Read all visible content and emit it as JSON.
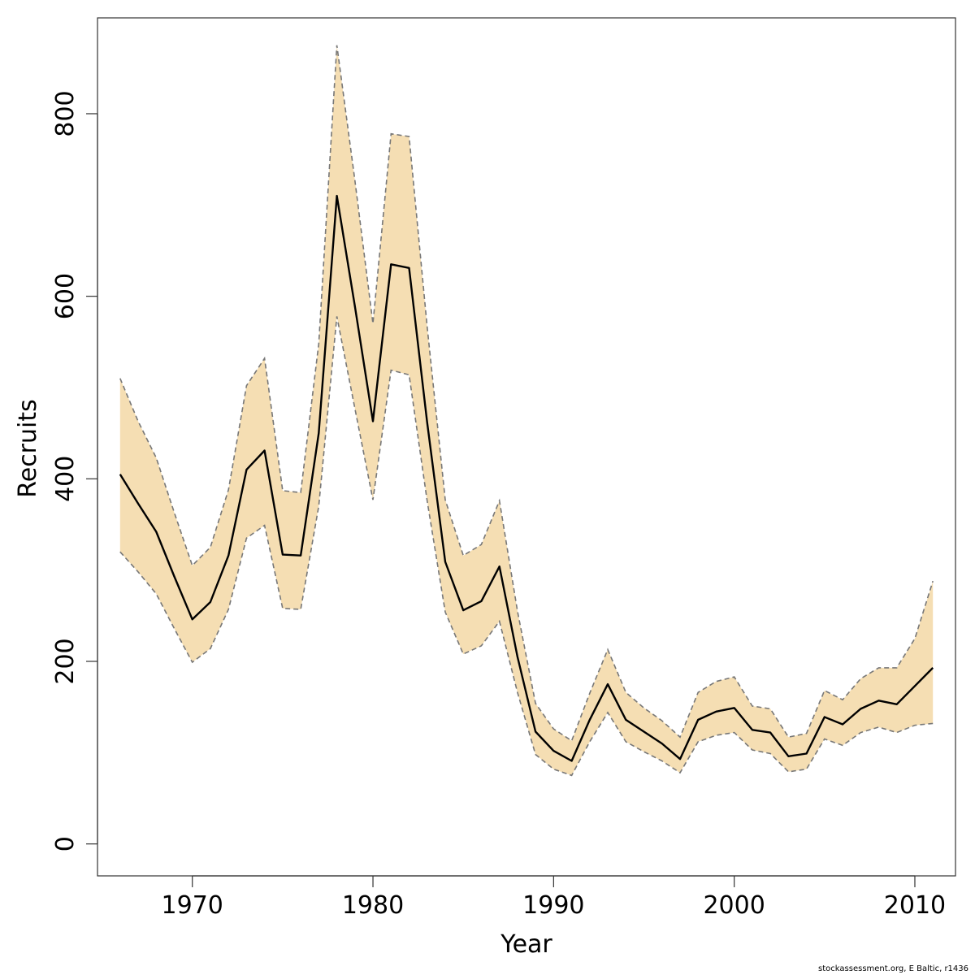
{
  "chart_data": {
    "type": "area",
    "xlabel": "Year",
    "ylabel": "Recruits",
    "xlim": [
      1964.75,
      2012.25
    ],
    "ylim": [
      -35,
      905
    ],
    "x_ticks": [
      1970,
      1980,
      1990,
      2000,
      2010
    ],
    "y_ticks": [
      0,
      200,
      400,
      600,
      800
    ],
    "grid": false,
    "legend": "none",
    "colors": {
      "band": "#f5deb3",
      "median": "#000000",
      "bounds": "#777777",
      "axis": "#333333"
    },
    "x": [
      1966,
      1967,
      1968,
      1969,
      1970,
      1971,
      1972,
      1973,
      1974,
      1975,
      1976,
      1977,
      1978,
      1979,
      1980,
      1981,
      1982,
      1983,
      1984,
      1985,
      1986,
      1987,
      1988,
      1989,
      1990,
      1991,
      1992,
      1993,
      1994,
      1995,
      1996,
      1997,
      1998,
      1999,
      2000,
      2001,
      2002,
      2003,
      2004,
      2005,
      2006,
      2007,
      2008,
      2009,
      2010,
      2011
    ],
    "series": [
      {
        "role": "median",
        "values": [
          405,
          373,
          342,
          293,
          246,
          265,
          316,
          410,
          431,
          317,
          316,
          450,
          710,
          589,
          463,
          635,
          631,
          462,
          309,
          256,
          266,
          304,
          205,
          123,
          102,
          91,
          136,
          175,
          136,
          123,
          110,
          93,
          136,
          145,
          149,
          125,
          122,
          96,
          99,
          139,
          131,
          148,
          157,
          153,
          173,
          193
        ]
      },
      {
        "role": "lower",
        "values": [
          320,
          298,
          274,
          236,
          199,
          214,
          257,
          335,
          349,
          258,
          257,
          370,
          578,
          477,
          377,
          519,
          514,
          376,
          254,
          208,
          217,
          244,
          166,
          98,
          82,
          75,
          112,
          144,
          112,
          101,
          91,
          78,
          112,
          119,
          122,
          103,
          99,
          79,
          82,
          115,
          108,
          122,
          128,
          122,
          130,
          132
        ]
      },
      {
        "role": "upper",
        "values": [
          510,
          463,
          423,
          363,
          305,
          325,
          388,
          502,
          532,
          387,
          385,
          548,
          875,
          727,
          570,
          778,
          775,
          567,
          377,
          316,
          328,
          376,
          255,
          154,
          126,
          113,
          165,
          213,
          166,
          149,
          135,
          117,
          166,
          178,
          183,
          151,
          148,
          117,
          121,
          168,
          158,
          181,
          193,
          193,
          225,
          288
        ]
      }
    ]
  },
  "footer": {
    "credit": "stockassessment.org, E Baltic, r1436"
  }
}
